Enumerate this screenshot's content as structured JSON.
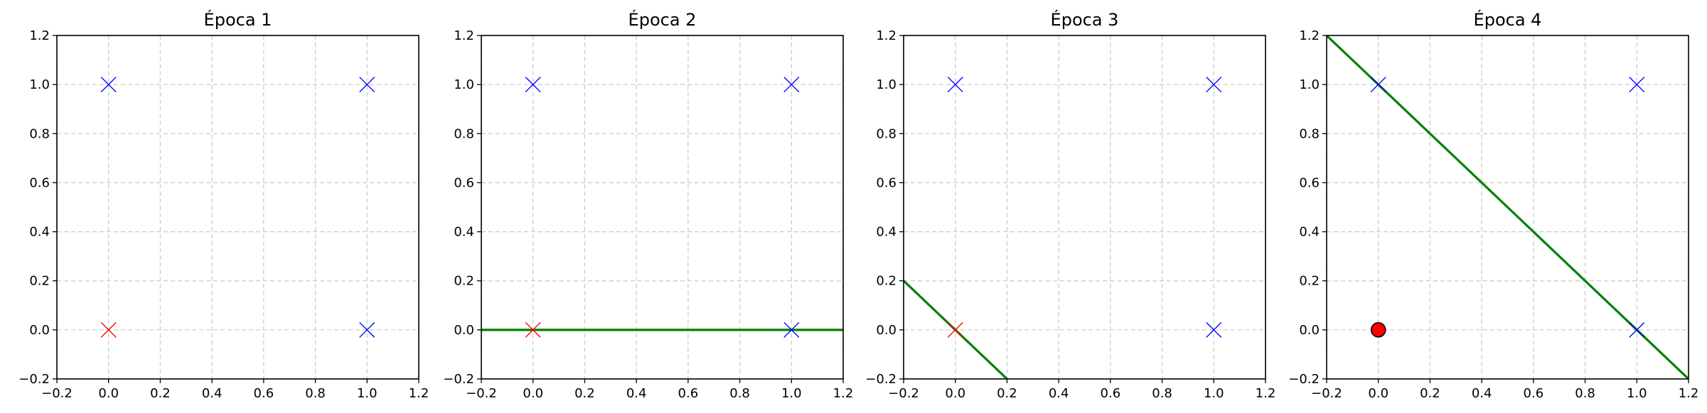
{
  "chart_data": [
    {
      "type": "scatter",
      "title": "Época 1",
      "xlim": [
        -0.2,
        1.2
      ],
      "ylim": [
        -0.2,
        1.2
      ],
      "xticks": [
        "−0.2",
        "0.0",
        "0.2",
        "0.4",
        "0.6",
        "0.8",
        "1.0",
        "1.2"
      ],
      "yticks": [
        "−0.2",
        "0.0",
        "0.2",
        "0.4",
        "0.6",
        "0.8",
        "1.0",
        "1.2"
      ],
      "grid": true,
      "points": [
        {
          "x": 0,
          "y": 0,
          "marker": "x",
          "color": "#ff0000"
        },
        {
          "x": 0,
          "y": 1,
          "marker": "x",
          "color": "#0000ff"
        },
        {
          "x": 1,
          "y": 0,
          "marker": "x",
          "color": "#0000ff"
        },
        {
          "x": 1,
          "y": 1,
          "marker": "x",
          "color": "#0000ff"
        }
      ],
      "lines": []
    },
    {
      "type": "scatter",
      "title": "Época 2",
      "xlim": [
        -0.2,
        1.2
      ],
      "ylim": [
        -0.2,
        1.2
      ],
      "xticks": [
        "−0.2",
        "0.0",
        "0.2",
        "0.4",
        "0.6",
        "0.8",
        "1.0",
        "1.2"
      ],
      "yticks": [
        "−0.2",
        "0.0",
        "0.2",
        "0.4",
        "0.6",
        "0.8",
        "1.0",
        "1.2"
      ],
      "grid": true,
      "points": [
        {
          "x": 0,
          "y": 0,
          "marker": "x",
          "color": "#ff0000"
        },
        {
          "x": 0,
          "y": 1,
          "marker": "x",
          "color": "#0000ff"
        },
        {
          "x": 1,
          "y": 0,
          "marker": "x",
          "color": "#0000ff"
        },
        {
          "x": 1,
          "y": 1,
          "marker": "x",
          "color": "#0000ff"
        }
      ],
      "lines": [
        {
          "points": [
            [
              -0.2,
              0.0
            ],
            [
              1.2,
              0.0
            ]
          ],
          "color": "#008000"
        }
      ]
    },
    {
      "type": "scatter",
      "title": "Época 3",
      "xlim": [
        -0.2,
        1.2
      ],
      "ylim": [
        -0.2,
        1.2
      ],
      "xticks": [
        "−0.2",
        "0.0",
        "0.2",
        "0.4",
        "0.6",
        "0.8",
        "1.0",
        "1.2"
      ],
      "yticks": [
        "−0.2",
        "0.0",
        "0.2",
        "0.4",
        "0.6",
        "0.8",
        "1.0",
        "1.2"
      ],
      "grid": true,
      "points": [
        {
          "x": 0,
          "y": 0,
          "marker": "x",
          "color": "#ff0000"
        },
        {
          "x": 0,
          "y": 1,
          "marker": "x",
          "color": "#0000ff"
        },
        {
          "x": 1,
          "y": 0,
          "marker": "x",
          "color": "#0000ff"
        },
        {
          "x": 1,
          "y": 1,
          "marker": "x",
          "color": "#0000ff"
        }
      ],
      "lines": [
        {
          "points": [
            [
              -0.2,
              0.2
            ],
            [
              0.2,
              -0.2
            ]
          ],
          "color": "#008000"
        }
      ]
    },
    {
      "type": "scatter",
      "title": "Época 4",
      "xlim": [
        -0.2,
        1.2
      ],
      "ylim": [
        -0.2,
        1.2
      ],
      "xticks": [
        "−0.2",
        "0.0",
        "0.2",
        "0.4",
        "0.6",
        "0.8",
        "1.0",
        "1.2"
      ],
      "yticks": [
        "−0.2",
        "0.0",
        "0.2",
        "0.4",
        "0.6",
        "0.8",
        "1.0",
        "1.2"
      ],
      "grid": true,
      "points": [
        {
          "x": 0,
          "y": 0,
          "marker": "o",
          "color": "#ff0000"
        },
        {
          "x": 0,
          "y": 1,
          "marker": "x",
          "color": "#0000ff"
        },
        {
          "x": 1,
          "y": 0,
          "marker": "x",
          "color": "#0000ff"
        },
        {
          "x": 1,
          "y": 1,
          "marker": "x",
          "color": "#0000ff"
        }
      ],
      "lines": [
        {
          "points": [
            [
              -0.2,
              1.2
            ],
            [
              1.2,
              -0.2
            ]
          ],
          "color": "#008000"
        }
      ]
    }
  ]
}
